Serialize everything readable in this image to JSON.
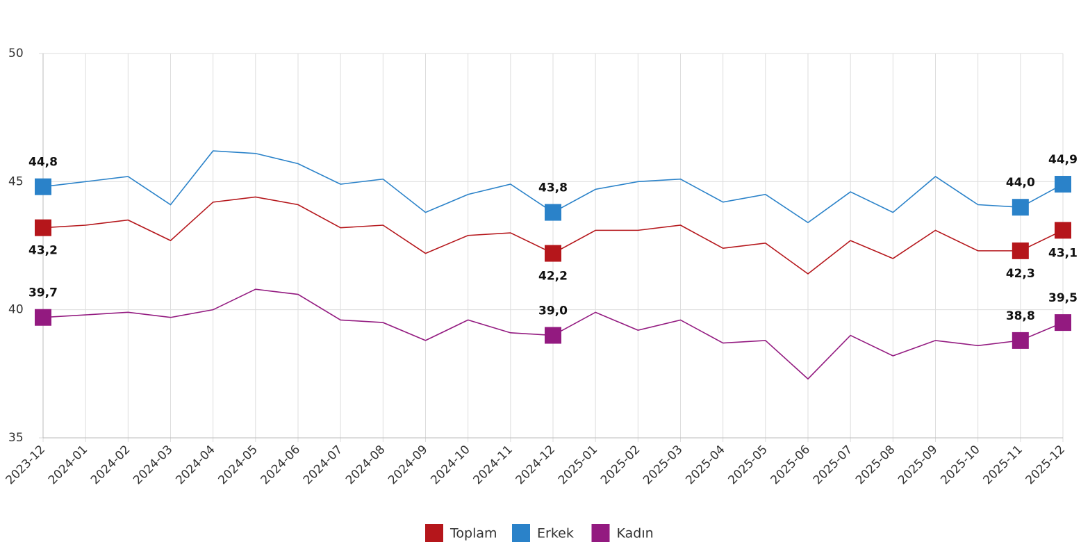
{
  "chart_data": {
    "type": "line",
    "categories": [
      "2023-12",
      "2024-01",
      "2024-02",
      "2024-03",
      "2024-04",
      "2024-05",
      "2024-06",
      "2024-07",
      "2024-08",
      "2024-09",
      "2024-10",
      "2024-11",
      "2024-12",
      "2025-01",
      "2025-02",
      "2025-03",
      "2025-04",
      "2025-05",
      "2025-06",
      "2025-07",
      "2025-08",
      "2025-09",
      "2025-10",
      "2025-11",
      "2025-12"
    ],
    "series": [
      {
        "name": "Toplam",
        "color": "#b5161b",
        "values": [
          43.2,
          43.3,
          43.5,
          42.7,
          44.2,
          44.4,
          44.1,
          43.2,
          43.3,
          42.2,
          42.9,
          43.0,
          42.2,
          43.1,
          43.1,
          43.3,
          42.4,
          42.6,
          41.4,
          42.7,
          42.0,
          43.1,
          42.3,
          42.3,
          43.1
        ],
        "value_labels": [
          "43,2",
          null,
          null,
          null,
          null,
          null,
          null,
          null,
          null,
          null,
          null,
          null,
          "42,2",
          null,
          null,
          null,
          null,
          null,
          null,
          null,
          null,
          null,
          null,
          "42,3",
          "43,1"
        ]
      },
      {
        "name": "Erkek",
        "color": "#2a82c9",
        "values": [
          44.8,
          45.0,
          45.2,
          44.1,
          46.2,
          46.1,
          45.7,
          44.9,
          45.1,
          43.8,
          44.5,
          44.9,
          43.8,
          44.7,
          45.0,
          45.1,
          44.2,
          44.5,
          43.4,
          44.6,
          43.8,
          45.2,
          44.1,
          44.0,
          44.9
        ],
        "value_labels": [
          "44,8",
          null,
          null,
          null,
          null,
          null,
          null,
          null,
          null,
          null,
          null,
          null,
          "43,8",
          null,
          null,
          null,
          null,
          null,
          null,
          null,
          null,
          null,
          null,
          "44,0",
          "44,9"
        ]
      },
      {
        "name": "Kadın",
        "color": "#931a80",
        "values": [
          39.7,
          39.8,
          39.9,
          39.7,
          40.0,
          40.8,
          40.6,
          39.6,
          39.5,
          38.8,
          39.6,
          39.1,
          39.0,
          39.9,
          39.2,
          39.6,
          38.7,
          38.8,
          37.3,
          39.0,
          38.2,
          38.8,
          38.6,
          38.8,
          39.5
        ],
        "value_labels": [
          "39,7",
          null,
          null,
          null,
          null,
          null,
          null,
          null,
          null,
          null,
          null,
          null,
          "39,0",
          null,
          null,
          null,
          null,
          null,
          null,
          null,
          null,
          null,
          null,
          "38,8",
          "39,5"
        ]
      }
    ],
    "ylim": [
      35,
      50
    ],
    "yticks": [
      35,
      40,
      45,
      50
    ],
    "grid": true,
    "legend": "bottom"
  }
}
